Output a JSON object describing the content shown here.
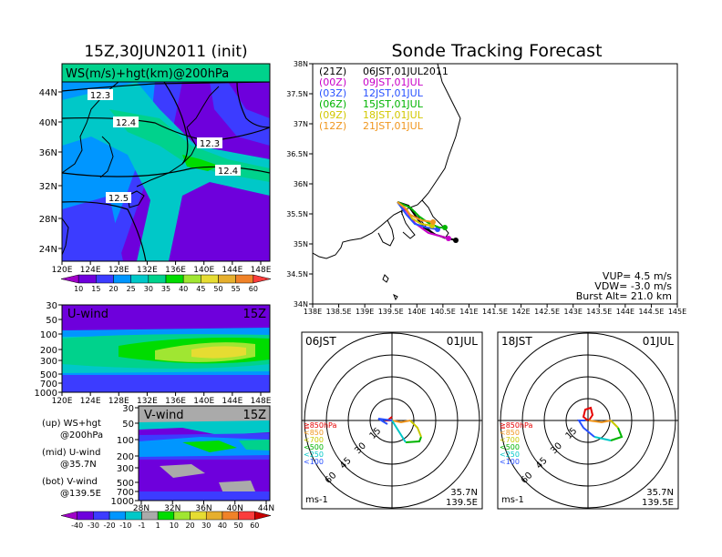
{
  "left_panel": {
    "title": "15Z,30JUN2011 (init)",
    "map_label": "WS(m/s)+hgt(km)@200hPa",
    "lat_ticks": [
      "44N",
      "40N",
      "36N",
      "32N",
      "28N",
      "24N"
    ],
    "lon_ticks": [
      "120E",
      "124E",
      "128E",
      "132E",
      "136E",
      "140E",
      "144E",
      "148E"
    ],
    "contour_labels": [
      "12.3",
      "12.4",
      "12.3",
      "12.4",
      "12.5"
    ],
    "ws_colorbar": {
      "labels": [
        "10",
        "15",
        "20",
        "25",
        "30",
        "35",
        "40",
        "45",
        "50",
        "55",
        "60"
      ],
      "colors": [
        "#a000c8",
        "#6e00dc",
        "#3c3cff",
        "#0096ff",
        "#00c8c8",
        "#00d28c",
        "#00dc00",
        "#a0e632",
        "#e6dc32",
        "#e6af2d",
        "#f08228",
        "#fa3c3c"
      ]
    },
    "uwind_label": "U-wind",
    "uwind_time": "15Z",
    "uwind_pressure_ticks": [
      "30",
      "50",
      "100",
      "200",
      "300",
      "500",
      "700",
      "1000"
    ],
    "uwind_lon_ticks": [
      "120E",
      "124E",
      "128E",
      "132E",
      "136E",
      "140E",
      "144E",
      "148E"
    ],
    "vwind_label": "V-wind",
    "vwind_time": "15Z",
    "vwind_pressure_ticks": [
      "30",
      "50",
      "100",
      "200",
      "300",
      "500",
      "700",
      "1000"
    ],
    "vwind_lat_ticks": [
      "28N",
      "32N",
      "36N",
      "40N",
      "44N"
    ],
    "legend": [
      {
        "line1": "(up) WS+hgt",
        "line2": "@200hPa"
      },
      {
        "line1": "(mid) U-wind",
        "line2": "@35.7N"
      },
      {
        "line1": "(bot) V-wind",
        "line2": "@139.5E"
      }
    ],
    "wind_colorbar": {
      "labels": [
        "-40",
        "-30",
        "-20",
        "-10",
        "-1",
        "1",
        "10",
        "20",
        "30",
        "40",
        "50",
        "60"
      ],
      "colors": [
        "#a000c8",
        "#6e00dc",
        "#3c3cff",
        "#0096ff",
        "#00c8c8",
        "#aaaaaa",
        "#00dc00",
        "#a0e632",
        "#e6dc32",
        "#e6af2d",
        "#f08228",
        "#fa3c3c",
        "#c80000"
      ]
    }
  },
  "right_panel": {
    "title": "Sonde Tracking Forecast",
    "lat_ticks": [
      "38N",
      "37.5N",
      "37N",
      "36.5N",
      "36N",
      "35.5N",
      "35N",
      "34.5N",
      "34N"
    ],
    "lon_ticks": [
      "138E",
      "138.5E",
      "139E",
      "139.5E",
      "140E",
      "140.5E",
      "141E",
      "141.5E",
      "142E",
      "142.5E",
      "143E",
      "143.5E",
      "144E",
      "144.5E",
      "145E"
    ],
    "launches": [
      {
        "utc": "(21Z)",
        "jst": "06JST,01JUL2011",
        "color": "#000000"
      },
      {
        "utc": "(00Z)",
        "jst": "09JST,01JUL",
        "color": "#c800c8"
      },
      {
        "utc": "(03Z)",
        "jst": "12JST,01JUL",
        "color": "#2850ff"
      },
      {
        "utc": "(06Z)",
        "jst": "15JST,01JUL",
        "color": "#00b400"
      },
      {
        "utc": "(09Z)",
        "jst": "18JST,01JUL",
        "color": "#d2c800"
      },
      {
        "utc": "(12Z)",
        "jst": "21JST,01JUL",
        "color": "#f0961e"
      }
    ],
    "params": {
      "vup": "VUP= 4.5 m/s",
      "vdw": "VDW= -3.0 m/s",
      "burst": "Burst Alt= 21.0 km"
    },
    "hodographs": [
      {
        "time": "06JST",
        "date": "01JUL",
        "lat": "35.7N",
        "lon": "139.5E",
        "unit": "ms-1"
      },
      {
        "time": "18JST",
        "date": "01JUL",
        "lat": "35.7N",
        "lon": "139.5E",
        "unit": "ms-1"
      }
    ],
    "ring_labels": [
      "15",
      "30",
      "45",
      "60"
    ],
    "pressure_legend": [
      {
        "label": "≧850hPa",
        "color": "#e60000"
      },
      {
        "label": "<850",
        "color": "#f0961e"
      },
      {
        "label": "<700",
        "color": "#c8c800"
      },
      {
        "label": "<500",
        "color": "#00b400"
      },
      {
        "label": "<250",
        "color": "#00c8c8"
      },
      {
        "label": "<100",
        "color": "#2850ff"
      }
    ]
  }
}
